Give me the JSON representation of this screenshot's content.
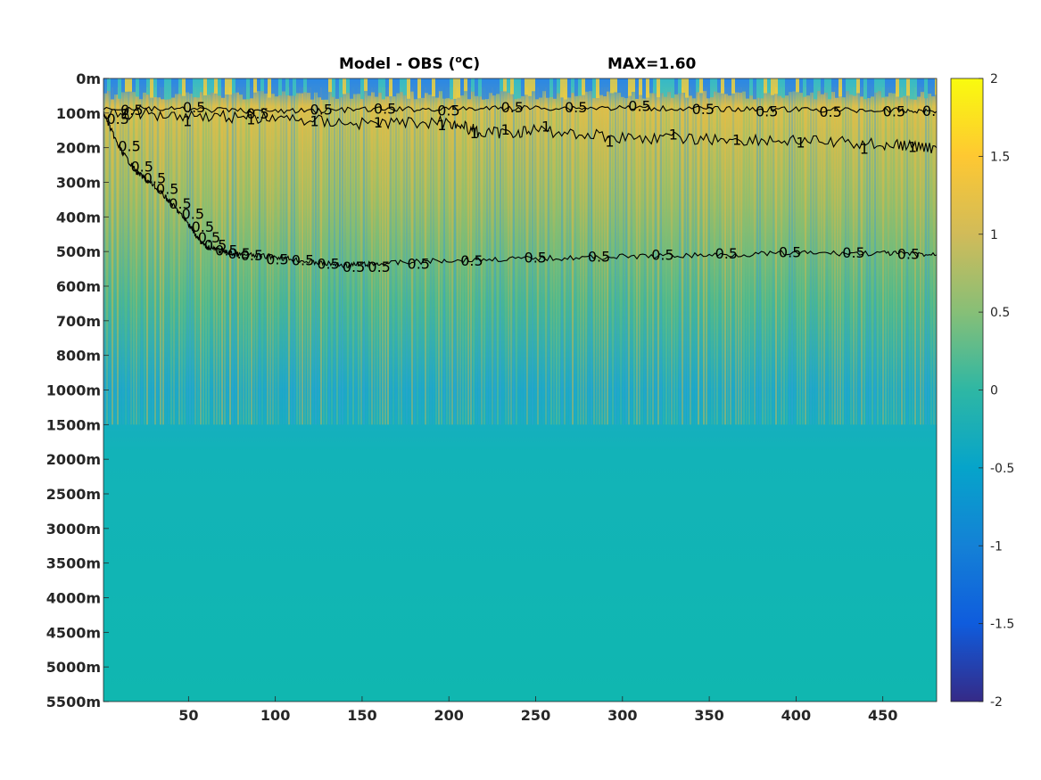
{
  "chart_data": {
    "type": "heatmap",
    "title": {
      "main": "Model - OBS (",
      "superscript": "o",
      "unit": "C)",
      "max_label": "MAX=1.60"
    },
    "xlabel": "",
    "ylabel": "",
    "xlim": [
      1,
      481
    ],
    "x_ticks": [
      50,
      100,
      150,
      200,
      250,
      300,
      350,
      400,
      450
    ],
    "x_tick_labels": [
      "50",
      "100",
      "150",
      "200",
      "250",
      "300",
      "350",
      "400",
      "450"
    ],
    "y_tick_labels": [
      "0m",
      "100m",
      "200m",
      "300m",
      "400m",
      "500m",
      "600m",
      "700m",
      "800m",
      "1000m",
      "1500m",
      "2000m",
      "2500m",
      "3000m",
      "3500m",
      "4000m",
      "4500m",
      "5000m",
      "5500m"
    ],
    "y_axis_note": "non-uniform depth axis, tick labels equally spaced",
    "colorbar": {
      "limits": [
        -2,
        2
      ],
      "ticks": [
        2,
        1.5,
        1,
        0.5,
        0,
        -0.5,
        -1,
        -1.5,
        -2
      ],
      "tick_labels": [
        "2",
        "1.5",
        "1",
        "0.5",
        "0",
        "-0.5",
        "-1",
        "-1.5",
        "-2"
      ],
      "colormap": "parula",
      "stops": [
        "#352a87",
        "#0f5cdd",
        "#1481d6",
        "#06a4ca",
        "#2eb7a4",
        "#87bf77",
        "#d1bb59",
        "#fec832",
        "#f9fb0e"
      ]
    },
    "contours": [
      {
        "level": 0.5,
        "label": "0.5",
        "x": [
          1,
          10,
          20,
          30,
          40,
          50,
          55,
          60,
          70,
          80,
          100,
          120,
          140,
          160,
          200,
          250,
          300,
          350,
          400,
          450,
          481
        ],
        "depth_m": [
          100,
          200,
          270,
          310,
          360,
          420,
          460,
          485,
          500,
          510,
          515,
          530,
          540,
          535,
          525,
          520,
          515,
          510,
          505,
          505,
          510
        ]
      },
      {
        "level": 0.5,
        "label": "0.5",
        "x": [
          1,
          50,
          100,
          150,
          200,
          250,
          300,
          350,
          400,
          450,
          481
        ],
        "depth_m": [
          85,
          90,
          95,
          90,
          88,
          85,
          85,
          88,
          90,
          92,
          95
        ]
      },
      {
        "level": 1,
        "label": "1",
        "x": [
          1,
          50,
          100,
          150,
          200,
          220,
          250,
          300,
          350,
          400,
          450,
          481
        ],
        "depth_m": [
          100,
          105,
          115,
          130,
          125,
          160,
          150,
          170,
          175,
          180,
          190,
          200
        ]
      }
    ],
    "grid": false,
    "legend": "none"
  }
}
